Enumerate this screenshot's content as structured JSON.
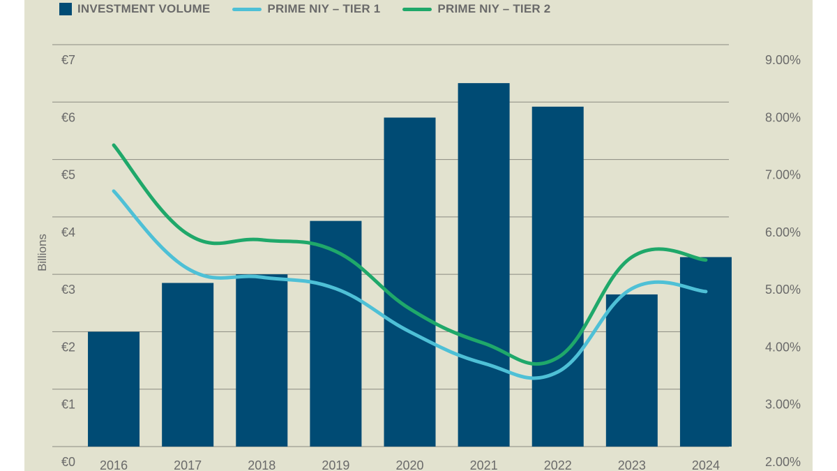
{
  "colors": {
    "background": "#e2e2cf",
    "bar": "#004b74",
    "tier1": "#4ec0d6",
    "tier2": "#1fa86a",
    "gridline": "#8a8a80",
    "text": "#6a6a6a"
  },
  "legend": {
    "items": [
      {
        "label": "INVESTMENT VOLUME",
        "kind": "box",
        "color": "#004b74"
      },
      {
        "label": "PRIME NIY – TIER 1",
        "kind": "line",
        "color": "#4ec0d6"
      },
      {
        "label": "PRIME NIY – TIER 2",
        "kind": "line",
        "color": "#1fa86a"
      }
    ]
  },
  "chart_data": {
    "type": "bar",
    "categories": [
      "2016",
      "2017",
      "2018",
      "2019",
      "2020",
      "2021",
      "2022",
      "2023",
      "2024"
    ],
    "series": [
      {
        "name": "INVESTMENT VOLUME",
        "type": "bar",
        "axis": "left",
        "values": [
          2.0,
          2.85,
          3.0,
          3.93,
          5.73,
          6.33,
          5.92,
          2.65,
          3.3
        ]
      },
      {
        "name": "PRIME NIY – TIER 1",
        "type": "line",
        "axis": "right",
        "values": [
          6.45,
          5.1,
          4.95,
          4.75,
          4.0,
          3.45,
          3.3,
          4.75,
          4.7
        ]
      },
      {
        "name": "PRIME NIY – TIER 2",
        "type": "line",
        "axis": "right",
        "values": [
          7.25,
          5.7,
          5.6,
          5.4,
          4.4,
          3.8,
          3.55,
          5.3,
          5.25
        ]
      }
    ],
    "ylabel": "Billions",
    "ylim": [
      0,
      7
    ],
    "yticks": [
      "€0",
      "€1",
      "€2",
      "€3",
      "€4",
      "€5",
      "€6",
      "€7"
    ],
    "y2lim": [
      2,
      9
    ],
    "y2ticks": [
      "2.00%",
      "3.00%",
      "4.00%",
      "5.00%",
      "6.00%",
      "7.00%",
      "8.00%",
      "9.00%"
    ],
    "legend_position": "top-left",
    "grid": true
  }
}
